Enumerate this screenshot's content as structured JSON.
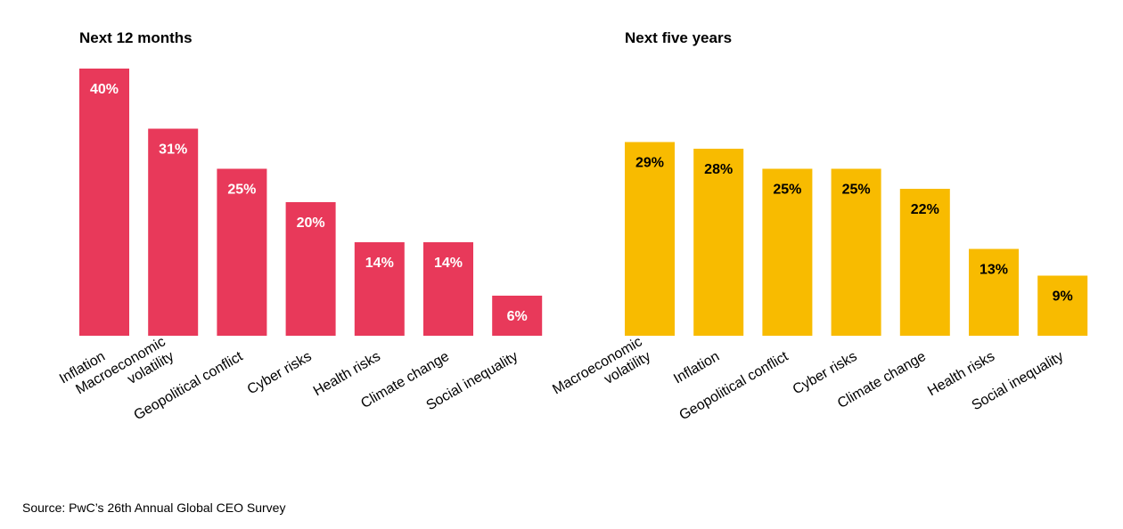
{
  "chart_data": [
    {
      "type": "bar",
      "title": "Next 12 months",
      "categories": [
        [
          "Inflation"
        ],
        [
          "Macroeconomic",
          "volatility"
        ],
        [
          "Geopolitical conflict"
        ],
        [
          "Cyber risks"
        ],
        [
          "Health risks"
        ],
        [
          "Climate change"
        ],
        [
          "Social inequality"
        ]
      ],
      "values": [
        40,
        31,
        25,
        20,
        14,
        14,
        6
      ],
      "value_labels": [
        "40%",
        "31%",
        "25%",
        "20%",
        "14%",
        "14%",
        "6%"
      ],
      "unit": "%",
      "bar_color": "#e8395a",
      "label_color": "#ffffff",
      "ylim": [
        0,
        40
      ],
      "grid": false,
      "legend": "none"
    },
    {
      "type": "bar",
      "title": "Next five years",
      "categories": [
        [
          "Macroeconomic",
          "volatility"
        ],
        [
          "Inflation"
        ],
        [
          "Geopolitical conflict"
        ],
        [
          "Cyber risks"
        ],
        [
          "Climate change"
        ],
        [
          "Health risks"
        ],
        [
          "Social inequality"
        ]
      ],
      "values": [
        29,
        28,
        25,
        25,
        22,
        13,
        9
      ],
      "value_labels": [
        "29%",
        "28%",
        "25%",
        "25%",
        "22%",
        "13%",
        "9%"
      ],
      "unit": "%",
      "bar_color": "#f8bb00",
      "label_color": "#000000",
      "ylim": [
        0,
        40
      ],
      "grid": false,
      "legend": "none"
    }
  ],
  "source": "Source: PwC’s 26th Annual Global CEO Survey"
}
